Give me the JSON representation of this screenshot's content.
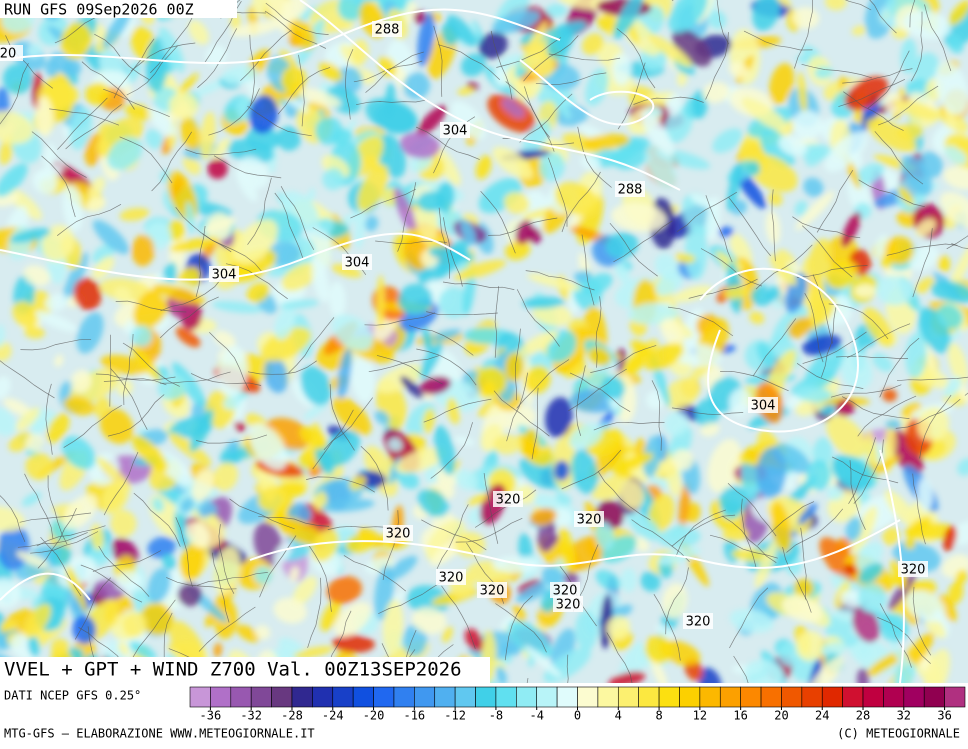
{
  "header": {
    "run": "RUN GFS 09Sep2026 00Z"
  },
  "map": {
    "contour_labels": [
      20,
      288,
      304,
      288,
      304,
      304,
      304,
      320,
      320,
      320,
      320,
      320,
      320,
      320,
      320,
      320
    ]
  },
  "footer": {
    "title": "VVEL + GPT + WIND Z700 Val. 00Z13SEP2026",
    "source": "DATI NCEP GFS 0.25°",
    "credit": "MTG-GFS – ELABORAZIONE WWW.METEOGIORNALE.IT",
    "copyright": "(C) METEOGIORNALE"
  },
  "colorbar": {
    "range": [
      -38,
      38
    ],
    "ticks": [
      -36,
      -32,
      -28,
      -24,
      -20,
      -16,
      -12,
      -8,
      -4,
      0,
      4,
      8,
      12,
      16,
      20,
      24,
      28,
      32,
      36
    ],
    "colors": [
      "#c896d8",
      "#b070c8",
      "#9858b0",
      "#804898",
      "#683880",
      "#302890",
      "#2030b0",
      "#1840c8",
      "#1050e0",
      "#2068f0",
      "#3080f0",
      "#4098f0",
      "#50b0f0",
      "#60c8f0",
      "#40d0e8",
      "#60e0f0",
      "#90ecf4",
      "#b8f4f8",
      "#e0fcfc",
      "#fcfcd0",
      "#fcf8a0",
      "#fcf070",
      "#fce840",
      "#fce010",
      "#fcd000",
      "#fcb800",
      "#fca000",
      "#fc8800",
      "#f87000",
      "#f05800",
      "#e84000",
      "#e02800",
      "#d01030",
      "#c00040",
      "#b00050",
      "#a00060",
      "#900050",
      "#b03080"
    ]
  }
}
